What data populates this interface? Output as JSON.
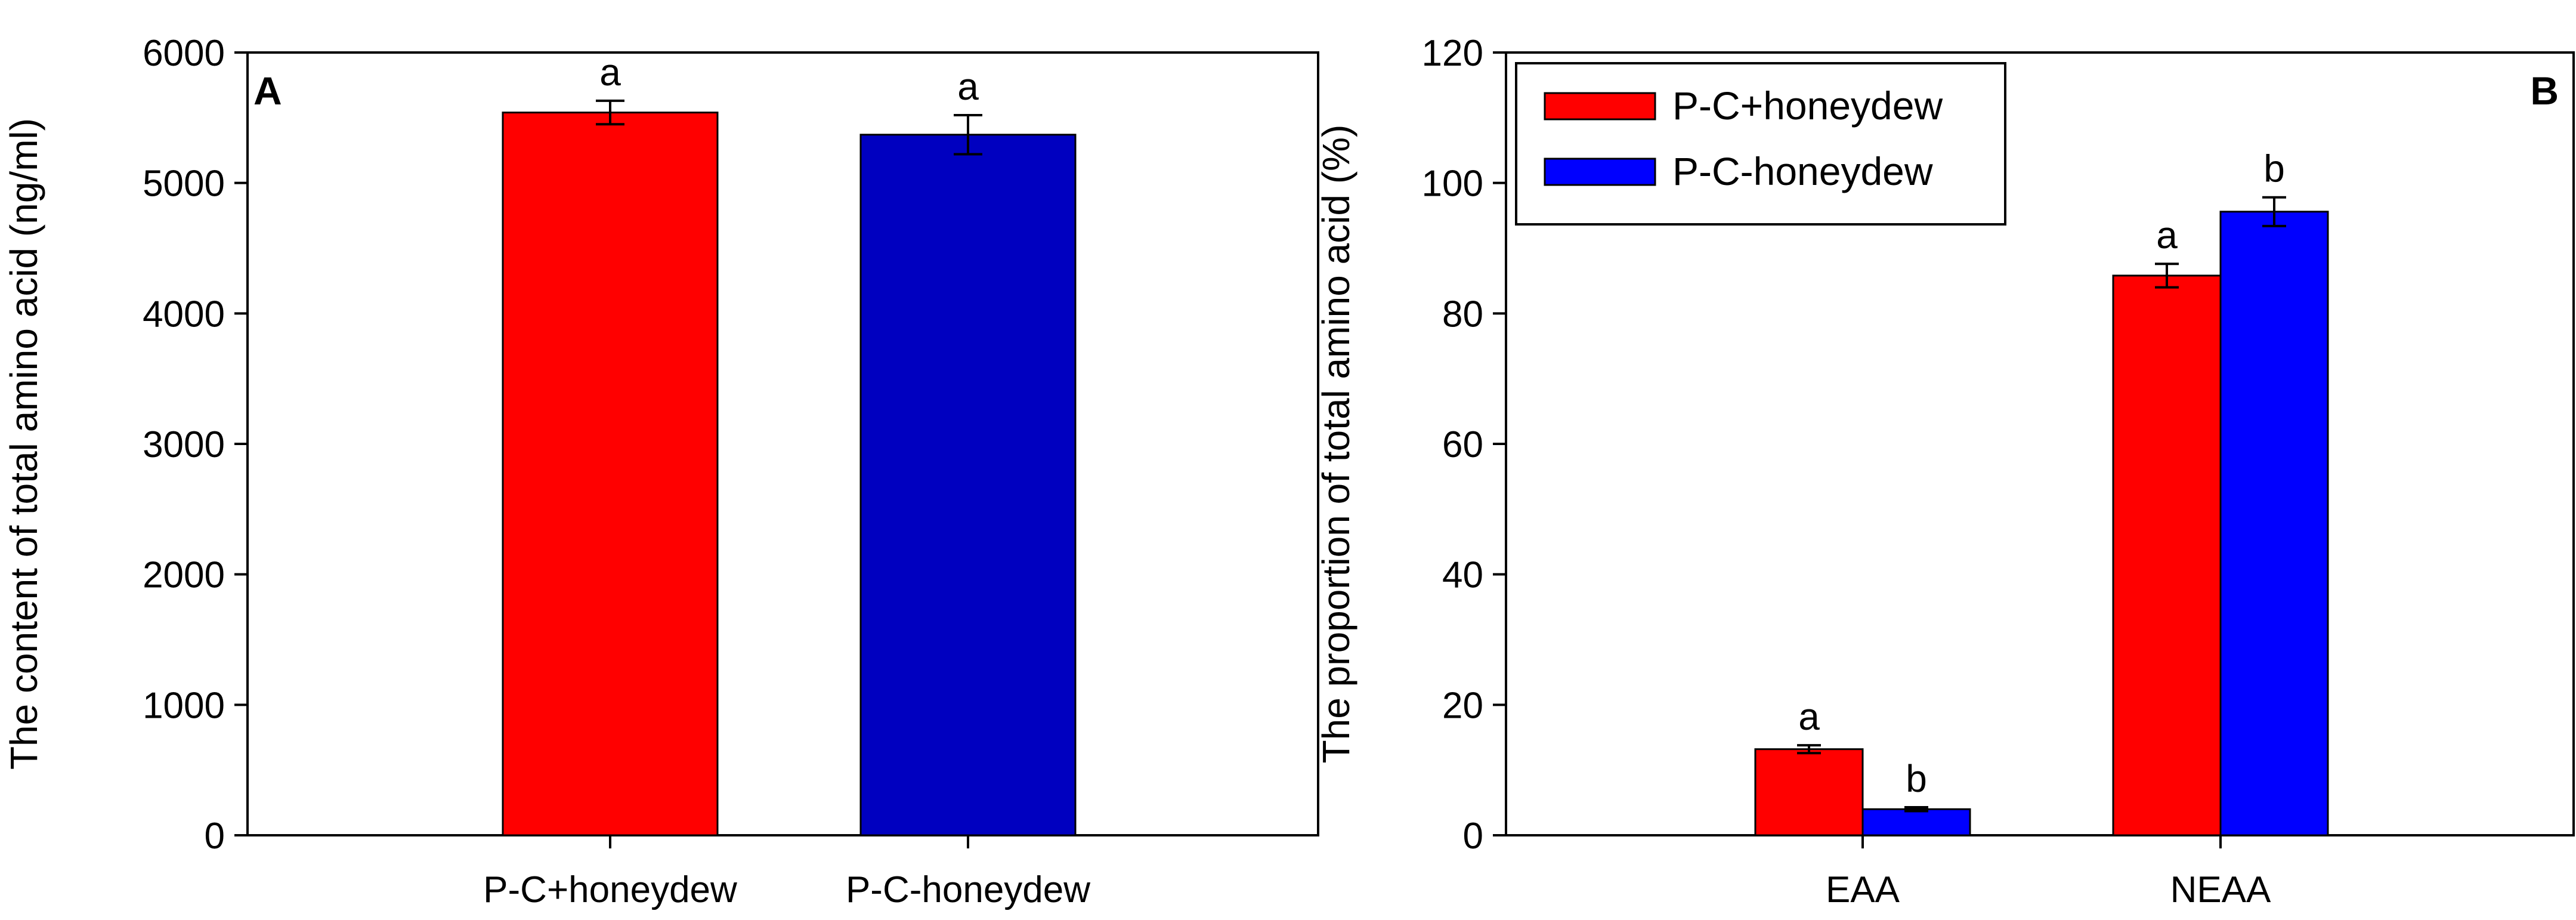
{
  "chart_data": [
    {
      "panel": "A",
      "type": "bar",
      "ylabel": "The content of total amino acid (ng/ml)",
      "xlabel": "",
      "ylim": [
        0,
        6000
      ],
      "yticks": [
        0,
        1000,
        2000,
        3000,
        4000,
        5000,
        6000
      ],
      "categories": [
        "P-C+honeydew",
        "P-C-honeydew"
      ],
      "values": [
        5540,
        5370
      ],
      "errors": [
        90,
        150
      ],
      "significance": [
        "a",
        "a"
      ],
      "colors": [
        "#ff0000",
        "#0000c0"
      ],
      "legend": false
    },
    {
      "panel": "B",
      "type": "bar",
      "ylabel": "The proportion of total amino acid (%)",
      "xlabel": "",
      "ylim": [
        0,
        120
      ],
      "yticks": [
        0,
        20,
        40,
        60,
        80,
        100,
        120
      ],
      "categories": [
        "EAA",
        "NEAA"
      ],
      "series": [
        {
          "name": "P-C+honeydew",
          "color": "#ff0000",
          "values": [
            13.2,
            85.8
          ],
          "errors": [
            0.6,
            1.8
          ],
          "significance": [
            "a",
            "a"
          ]
        },
        {
          "name": "P-C-honeydew",
          "color": "#0000ff",
          "values": [
            4.0,
            95.6
          ],
          "errors": [
            0.3,
            2.2
          ],
          "significance": [
            "b",
            "b"
          ]
        }
      ],
      "legend": "top-left"
    }
  ]
}
